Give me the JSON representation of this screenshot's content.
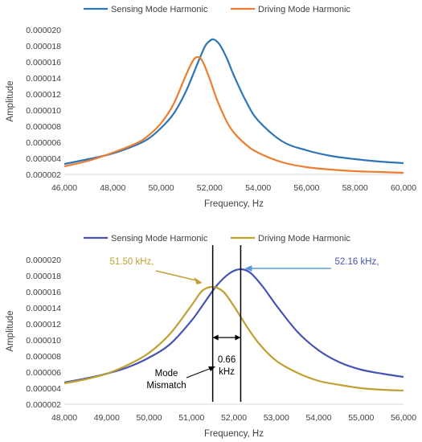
{
  "chart_data": [
    {
      "type": "line",
      "title": "",
      "xlabel": "Frequency, Hz",
      "ylabel": "Amplitude",
      "xlim": [
        46000,
        60000
      ],
      "ylim": [
        2e-06,
        2e-05
      ],
      "x_ticks": [
        "46,000",
        "48,000",
        "50,000",
        "52,000",
        "54,000",
        "56,000",
        "58,000",
        "60,000"
      ],
      "y_ticks": [
        "0.000002",
        "0.000004",
        "0.000006",
        "0.000008",
        "0.000010",
        "0.000012",
        "0.000014",
        "0.000016",
        "0.000018",
        "0.000020"
      ],
      "grid": false,
      "legend_position": "top",
      "series": [
        {
          "name": "Sensing Mode Harmonic",
          "color": "#2E75B6",
          "x": [
            46000,
            47000,
            48000,
            49000,
            49500,
            50000,
            50500,
            51000,
            51500,
            51800,
            52000,
            52160,
            52400,
            52700,
            53000,
            53500,
            54000,
            55000,
            56000,
            57000,
            58000,
            59000,
            60000
          ],
          "y": [
            3.3e-06,
            3.9e-06,
            4.6e-06,
            5.7e-06,
            6.5e-06,
            7.8e-06,
            9.5e-06,
            1.22e-05,
            1.58e-05,
            1.79e-05,
            1.86e-05,
            1.88e-05,
            1.82e-05,
            1.65e-05,
            1.43e-05,
            1.11e-05,
            8.7e-06,
            6.1e-06,
            5e-06,
            4.3e-06,
            3.9e-06,
            3.6e-06,
            3.4e-06
          ]
        },
        {
          "name": "Driving Mode Harmonic",
          "color": "#ED7D31",
          "x": [
            46000,
            47000,
            48000,
            49000,
            49500,
            50000,
            50500,
            51000,
            51300,
            51500,
            51700,
            52000,
            52300,
            52700,
            53000,
            53500,
            54000,
            55000,
            56000,
            57000,
            58000,
            59000,
            60000
          ],
          "y": [
            3e-06,
            3.7e-06,
            4.7e-06,
            5.9e-06,
            6.9e-06,
            8.4e-06,
            1.07e-05,
            1.42e-05,
            1.61e-05,
            1.66e-05,
            1.61e-05,
            1.39e-05,
            1.13e-05,
            8.6e-06,
            7.2e-06,
            5.7e-06,
            4.7e-06,
            3.5e-06,
            2.9e-06,
            2.6e-06,
            2.4e-06,
            2.3e-06,
            2.2e-06
          ]
        }
      ]
    },
    {
      "type": "line",
      "title": "",
      "xlabel": "Frequency, Hz",
      "ylabel": "Amplitude",
      "xlim": [
        48000,
        56000
      ],
      "ylim": [
        2e-06,
        2e-05
      ],
      "x_ticks": [
        "48,000",
        "49,000",
        "50,000",
        "51,000",
        "52,000",
        "53,000",
        "54,000",
        "55,000",
        "56,000"
      ],
      "y_ticks": [
        "0.000002",
        "0.000004",
        "0.000006",
        "0.000008",
        "0.000010",
        "0.000012",
        "0.000014",
        "0.000016",
        "0.000018",
        "0.000020"
      ],
      "grid": false,
      "legend_position": "top",
      "series": [
        {
          "name": "Sensing Mode Harmonic",
          "color": "#4653B4",
          "x": [
            48000,
            48500,
            49000,
            49500,
            50000,
            50500,
            51000,
            51300,
            51600,
            51900,
            52160,
            52400,
            52700,
            53000,
            53500,
            54000,
            54500,
            55000,
            55500,
            56000
          ],
          "y": [
            4.7e-06,
            5.2e-06,
            5.8e-06,
            6.6e-06,
            7.8e-06,
            9.5e-06,
            1.24e-05,
            1.46e-05,
            1.68e-05,
            1.83e-05,
            1.88e-05,
            1.83e-05,
            1.65e-05,
            1.43e-05,
            1.1e-05,
            8.7e-06,
            7.2e-06,
            6.3e-06,
            5.8e-06,
            5.4e-06
          ]
        },
        {
          "name": "Driving Mode Harmonic",
          "color": "#BFA030",
          "x": [
            48000,
            48500,
            49000,
            49500,
            50000,
            50500,
            51000,
            51250,
            51500,
            51750,
            52000,
            52300,
            52600,
            53000,
            53500,
            54000,
            54500,
            55000,
            55500,
            56000
          ],
          "y": [
            4.6e-06,
            5.1e-06,
            5.8e-06,
            6.9e-06,
            8.4e-06,
            1.08e-05,
            1.43e-05,
            1.61e-05,
            1.66e-05,
            1.6e-05,
            1.42e-05,
            1.17e-05,
            9.5e-06,
            7.4e-06,
            5.9e-06,
            4.9e-06,
            4.4e-06,
            4e-06,
            3.8e-06,
            3.7e-06
          ]
        }
      ],
      "vlines": [
        51500,
        52160
      ],
      "annotations": {
        "driving_peak_label": "51.50 kHz,",
        "sensing_peak_label": "52.16 kHz,",
        "mismatch_value_line1": "0.66",
        "mismatch_value_line2": "kHz",
        "mismatch_label_line1": "Mode",
        "mismatch_label_line2": "Mismatch"
      }
    }
  ]
}
